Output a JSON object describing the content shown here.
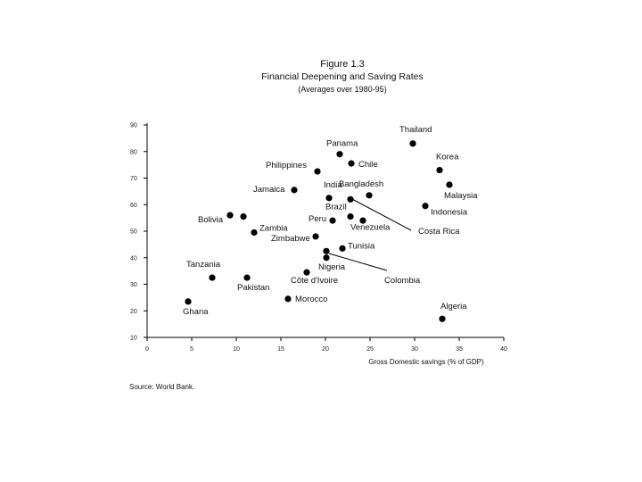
{
  "figure": {
    "number": "Figure 1.3",
    "title": "Financial Deepening and Saving Rates",
    "subtitle": "(Averages over 1980-95)",
    "source": "Source: World Bank."
  },
  "chart_data": {
    "type": "scatter",
    "xlabel": "Gross Domestic savings (% of GDP)",
    "ylabel": "",
    "xlim": [
      0,
      40
    ],
    "ylim": [
      10,
      90
    ],
    "xticks": [
      0,
      5,
      10,
      15,
      20,
      25,
      30,
      35,
      40
    ],
    "yticks": [
      10,
      20,
      30,
      40,
      50,
      60,
      70,
      80,
      90
    ],
    "grid": false,
    "points": [
      {
        "label": "Thailand",
        "x": 29.8,
        "y": 83
      },
      {
        "label": "Panama",
        "x": 21.6,
        "y": 79
      },
      {
        "label": "Chile",
        "x": 22.9,
        "y": 75.5
      },
      {
        "label": "Korea",
        "x": 32.8,
        "y": 73
      },
      {
        "label": "Philippines",
        "x": 19.1,
        "y": 72.5
      },
      {
        "label": "Malaysia",
        "x": 33.9,
        "y": 67.5
      },
      {
        "label": "Jamaica",
        "x": 16.5,
        "y": 65.5
      },
      {
        "label": "Bangladesh",
        "x": 24.9,
        "y": 63.5
      },
      {
        "label": "India",
        "x": 20.4,
        "y": 62.5
      },
      {
        "label": "",
        "x": 22.8,
        "y": 62
      },
      {
        "label": "Indonesia",
        "x": 31.2,
        "y": 59.5
      },
      {
        "label": "Bolivia",
        "x": 9.3,
        "y": 56
      },
      {
        "label": "",
        "x": 10.8,
        "y": 55.5
      },
      {
        "label": "Brazil",
        "x": 22.8,
        "y": 55.5
      },
      {
        "label": "Peru",
        "x": 20.8,
        "y": 54
      },
      {
        "label": "",
        "x": 24.2,
        "y": 54
      },
      {
        "label": "Zambia",
        "x": 12,
        "y": 49.5
      },
      {
        "label": "Zimbabwe",
        "x": 18.9,
        "y": 48
      },
      {
        "label": "Tunisia",
        "x": 21.9,
        "y": 43.5
      },
      {
        "label": "",
        "x": 20.1,
        "y": 42.5
      },
      {
        "label": "Nigeria",
        "x": 20.1,
        "y": 40
      },
      {
        "label": "Côte d'Ivoire",
        "x": 17.9,
        "y": 34.5
      },
      {
        "label": "Tanzania",
        "x": 7.3,
        "y": 32.5
      },
      {
        "label": "Pakistan",
        "x": 11.2,
        "y": 32.5
      },
      {
        "label": "Morocco",
        "x": 15.8,
        "y": 24.5
      },
      {
        "label": "Ghana",
        "x": 4.6,
        "y": 23.5
      },
      {
        "label": "Algeria",
        "x": 33.1,
        "y": 17
      }
    ],
    "annotations": [
      {
        "text": "Costa Rica",
        "x": 30.4,
        "y": 49
      },
      {
        "text": "Venezuela",
        "x": 22.8,
        "y": 50.5
      },
      {
        "text": "Colombia",
        "x": 26.6,
        "y": 30.5
      }
    ]
  }
}
